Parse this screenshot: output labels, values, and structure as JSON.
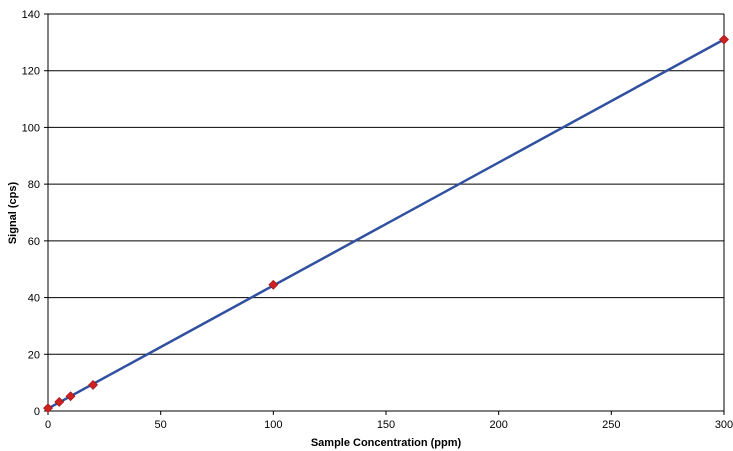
{
  "chart_data": {
    "type": "scatter",
    "title": "",
    "xlabel": "Sample Concentration (ppm)",
    "ylabel": "Signal (cps)",
    "xlim": [
      0,
      300
    ],
    "ylim": [
      0,
      140
    ],
    "x_ticks": [
      0,
      50,
      100,
      150,
      200,
      250,
      300
    ],
    "y_ticks": [
      0,
      20,
      40,
      60,
      80,
      100,
      120,
      140
    ],
    "grid": "horizontal",
    "legend": "none",
    "colors": {
      "points": "#cc2222",
      "trendline": "#3050a0",
      "grid": "#000000"
    },
    "series": [
      {
        "marker": "diamond",
        "x": [
          0,
          5,
          10,
          20,
          100,
          300
        ],
        "y": [
          1,
          3.2,
          5.2,
          9.2,
          44.5,
          131
        ]
      }
    ],
    "trendline": {
      "x": [
        1,
        300
      ],
      "y": [
        1.3,
        131
      ]
    }
  }
}
